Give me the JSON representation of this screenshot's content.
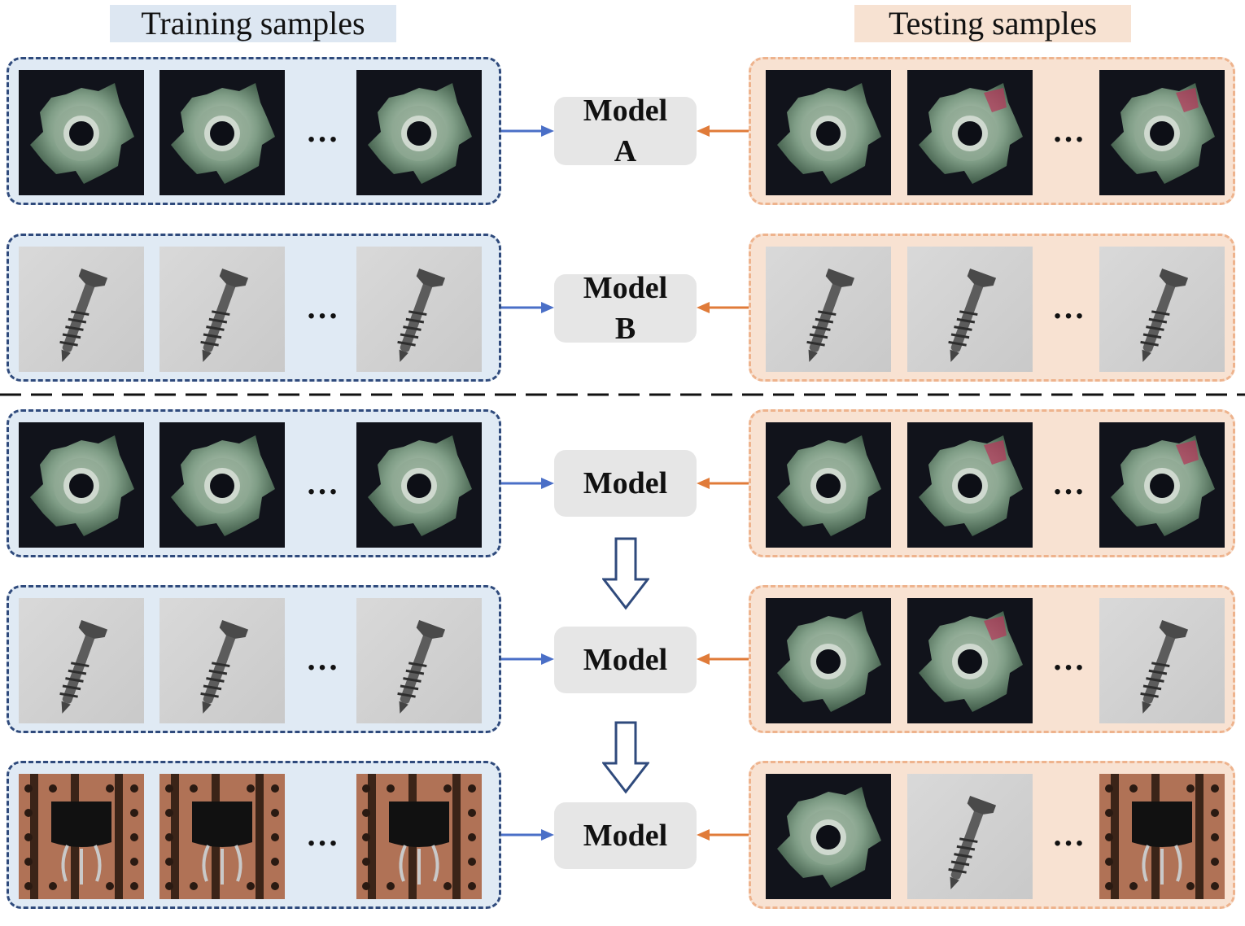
{
  "headers": {
    "training": "Training samples",
    "testing": "Testing samples"
  },
  "ellipsis": "…",
  "models": {
    "a_line1": "Model",
    "a_line2": "A",
    "b_line1": "Model",
    "b_line2": "B",
    "shared": "Model"
  },
  "rows": [
    {
      "train": [
        "nut",
        "nut",
        "nut"
      ],
      "test": [
        "nut",
        "nut-defect",
        "nut-defect"
      ]
    },
    {
      "train": [
        "screw",
        "screw",
        "screw"
      ],
      "test": [
        "screw",
        "screw",
        "screw"
      ]
    },
    {
      "train": [
        "nut",
        "nut",
        "nut"
      ],
      "test": [
        "nut",
        "nut-defect",
        "nut-defect"
      ]
    },
    {
      "train": [
        "screw",
        "screw",
        "screw"
      ],
      "test": [
        "nut",
        "nut-defect",
        "screw"
      ]
    },
    {
      "train": [
        "transistor",
        "transistor",
        "transistor"
      ],
      "test": [
        "nut",
        "screw",
        "transistor"
      ]
    }
  ],
  "colors": {
    "train_border": "#2f4a7c",
    "train_fill": "#e0eaf4",
    "test_border": "#eeb38d",
    "test_fill": "#f8e2d2",
    "train_arrow": "#4a6fc7",
    "test_arrow": "#e07b39",
    "model_box": "#e6e6e6"
  }
}
